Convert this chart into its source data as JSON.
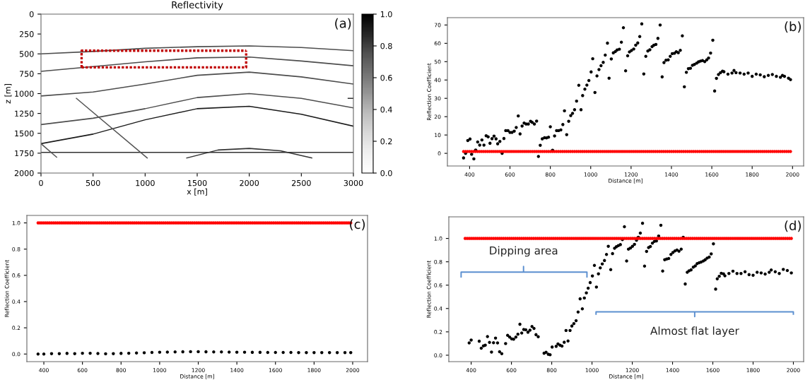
{
  "chart_data": [
    {
      "type": "line",
      "title": "Reflectivity",
      "xlabel": "x [m]",
      "ylabel": "z [m]",
      "xlim": [
        0,
        3000
      ],
      "ylim": [
        2000,
        0
      ],
      "xticks": [
        0,
        500,
        1000,
        1500,
        2000,
        2500,
        3000
      ],
      "yticks": [
        0,
        250,
        500,
        750,
        1000,
        1250,
        1500,
        1750,
        2000
      ],
      "clim": [
        0,
        1
      ],
      "cticks": [
        {
          "value": 0,
          "label": "0.0"
        },
        {
          "value": 0.2,
          "label": "0.2"
        },
        {
          "value": 0.4,
          "label": "0.4"
        },
        {
          "value": 0.6,
          "label": "0.6"
        },
        {
          "value": 0.8,
          "label": "0.8"
        },
        {
          "value": 1,
          "label": "1.0"
        }
      ],
      "annotations": [
        "(a)"
      ],
      "series": [
        {
          "color": "#4d4d4d",
          "x": [
            0,
            500,
            1000,
            1500,
            2000,
            2500,
            3000
          ],
          "values": [
            500,
            470,
            430,
            410,
            400,
            420,
            460
          ]
        },
        {
          "color": "#4d4d4d",
          "x": [
            0,
            500,
            1000,
            1500,
            2000,
            2500,
            3000
          ],
          "values": [
            720,
            660,
            600,
            550,
            540,
            590,
            650
          ]
        },
        {
          "color": "#4d4d4d",
          "x": [
            0,
            500,
            1000,
            1500,
            2000,
            2500,
            3000
          ],
          "values": [
            1030,
            980,
            880,
            770,
            730,
            790,
            880
          ]
        },
        {
          "color": "#4d4d4d",
          "x": [
            0,
            500,
            1000,
            1500,
            2000,
            2500,
            3000
          ],
          "values": [
            1390,
            1310,
            1190,
            1050,
            1000,
            1060,
            1180
          ]
        },
        {
          "color": "#1a1a1a",
          "x": [
            0,
            500,
            1000,
            1500,
            2000,
            2500,
            3000
          ],
          "values": [
            1630,
            1510,
            1330,
            1190,
            1160,
            1260,
            1410
          ]
        },
        {
          "color": "#333333",
          "x": [
            0,
            3000
          ],
          "values": [
            1740,
            1740
          ]
        },
        {
          "color": "#555555",
          "x": [
            0,
            150
          ],
          "values": [
            1630,
            1800
          ]
        },
        {
          "color": "#555555",
          "x": [
            340,
            1020
          ],
          "values": [
            1060,
            1810
          ]
        },
        {
          "color": "#333333",
          "x": [
            1400,
            1700,
            2000,
            2300,
            2600
          ],
          "values": [
            1810,
            1710,
            1690,
            1720,
            1810
          ]
        },
        {
          "color": "#333333",
          "x": [
            2950,
            3000
          ],
          "values": [
            1060,
            1060
          ]
        },
        {
          "color": "#c00000",
          "line_style": "dotted",
          "x": [
            390,
            390,
            1970
          ],
          "values": [
            670,
            460,
            460
          ]
        },
        {
          "color": "#c00000",
          "line_style": "dotted",
          "x": [
            390,
            1970,
            1970
          ],
          "values": [
            670,
            670,
            460
          ]
        }
      ]
    },
    {
      "type": "scatter",
      "xlabel": "Distance [m]",
      "ylabel": "Reflection Coefficient",
      "xlim": [
        290,
        2055
      ],
      "ylim": [
        -6.9,
        74
      ],
      "xticks": [
        400,
        600,
        800,
        1000,
        1200,
        1400,
        1600,
        1800,
        2000
      ],
      "yticks": [
        0,
        10,
        20,
        30,
        40,
        50,
        60,
        70
      ],
      "marker": "circle",
      "annotations": [
        "(b)"
      ],
      "series": [
        {
          "color": "#000000",
          "x": [
            370,
            380,
            391,
            402,
            410,
            421,
            430,
            440,
            450,
            461,
            471,
            482,
            492,
            501,
            511,
            521,
            531,
            539,
            550,
            561,
            570,
            579,
            590,
            600,
            610,
            621,
            631,
            641,
            650,
            660,
            670,
            680,
            691,
            702,
            710,
            721,
            732,
            741,
            750,
            760,
            771,
            781,
            791,
            800,
            811,
            821,
            831,
            841,
            852,
            862,
            870,
            881,
            891,
            901,
            910,
            920,
            930,
            941,
            952,
            960,
            971,
            981,
            991,
            1002,
            1010,
            1021,
            1031,
            1041,
            1051,
            1062,
            1072,
            1083,
            1091,
            1102,
            1112,
            1122,
            1131,
            1142,
            1152,
            1162,
            1173,
            1183,
            1192,
            1202,
            1213,
            1223,
            1233,
            1243,
            1253,
            1263,
            1273,
            1283,
            1293,
            1304,
            1313,
            1323,
            1333,
            1344,
            1354,
            1363,
            1373,
            1384,
            1394,
            1404,
            1415,
            1424,
            1434,
            1444,
            1454,
            1464,
            1474,
            1484,
            1494,
            1504,
            1514,
            1525,
            1534,
            1544,
            1554,
            1565,
            1575,
            1584,
            1594,
            1605,
            1614,
            1623,
            1633,
            1643,
            1653,
            1660,
            1680,
            1700,
            1710,
            1720,
            1740,
            1760,
            1780,
            1800,
            1820,
            1840,
            1860,
            1880,
            1900,
            1920,
            1940,
            1950,
            1960,
            1980,
            1990
          ],
          "values": [
            -2.5,
            0,
            7,
            7.8,
            -0.5,
            -3,
            1.8,
            6.2,
            4.5,
            7.3,
            4.5,
            9.6,
            9,
            5.5,
            8,
            9.4,
            7.9,
            5.2,
            6.5,
            0,
            8.1,
            12.4,
            12.4,
            11.4,
            11.4,
            12.1,
            14.1,
            20.4,
            10.6,
            14.9,
            16.5,
            16,
            16,
            17.5,
            16.9,
            16,
            17.6,
            -1.7,
            4.4,
            7.9,
            8.5,
            8.4,
            8.8,
            14.5,
            1.7,
            9.5,
            12.4,
            12.4,
            12.8,
            15.7,
            23.2,
            10.2,
            17.5,
            20.6,
            21.8,
            23.8,
            28.5,
            37.1,
            23.8,
            31.5,
            35,
            37.2,
            39.7,
            44.4,
            51.6,
            33.2,
            42.2,
            45.7,
            47.8,
            49.6,
            53.6,
            60.1,
            41,
            51.5,
            54.8,
            55.5,
            56.4,
            56.8,
            60.6,
            68.5,
            45,
            53.2,
            55.3,
            56.1,
            56.9,
            59,
            60.2,
            63.7,
            70.6,
            43.3,
            52.9,
            55.8,
            56.5,
            58.2,
            59,
            59.4,
            62.7,
            70,
            41.7,
            49.5,
            50.8,
            51,
            52.9,
            54.4,
            54.6,
            55.4,
            54.9,
            56.2,
            64.1,
            36.3,
            44.2,
            46.2,
            46.4,
            48,
            48.5,
            49.2,
            49.9,
            50.3,
            50.6,
            50,
            51,
            52,
            54.7,
            61.7,
            34,
            40.9,
            43,
            44,
            44.8,
            44.5,
            43.2,
            43.8,
            45.2,
            44,
            43.8,
            43.2,
            43.8,
            42,
            43.2,
            42.8,
            41.8,
            42.5,
            43,
            42,
            41.5,
            42.5,
            42,
            41,
            40.2
          ]
        },
        {
          "color": "#ff0000",
          "x": [
            370,
            380,
            390,
            400,
            410,
            420,
            430,
            440,
            450,
            460,
            470,
            480,
            490,
            500,
            510,
            520,
            530,
            540,
            550,
            560,
            570,
            580,
            590,
            600,
            610,
            620,
            630,
            640,
            650,
            660,
            670,
            680,
            690,
            700,
            710,
            720,
            730,
            740,
            750,
            760,
            770,
            780,
            790,
            800,
            810,
            820,
            830,
            840,
            850,
            860,
            870,
            880,
            890,
            900,
            910,
            920,
            930,
            940,
            950,
            960,
            970,
            980,
            990,
            1000,
            1010,
            1020,
            1030,
            1040,
            1050,
            1060,
            1070,
            1080,
            1090,
            1100,
            1110,
            1120,
            1130,
            1140,
            1150,
            1160,
            1170,
            1180,
            1190,
            1200,
            1210,
            1220,
            1230,
            1240,
            1250,
            1260,
            1270,
            1280,
            1290,
            1300,
            1310,
            1320,
            1330,
            1340,
            1350,
            1360,
            1370,
            1380,
            1390,
            1400,
            1410,
            1420,
            1430,
            1440,
            1450,
            1460,
            1470,
            1480,
            1490,
            1500,
            1510,
            1520,
            1530,
            1540,
            1550,
            1560,
            1570,
            1580,
            1590,
            1600,
            1610,
            1620,
            1630,
            1640,
            1650,
            1660,
            1670,
            1680,
            1690,
            1700,
            1710,
            1720,
            1730,
            1740,
            1750,
            1760,
            1770,
            1780,
            1790,
            1800,
            1810,
            1820,
            1830,
            1840,
            1850,
            1860,
            1870,
            1880,
            1890,
            1900,
            1910,
            1920,
            1930,
            1940,
            1950,
            1960,
            1970,
            1980,
            1990
          ],
          "values": [
            1,
            1,
            1,
            1,
            1,
            1,
            1,
            1,
            1,
            1,
            1,
            1,
            1,
            1,
            1,
            1,
            1,
            1,
            1,
            1,
            1,
            1,
            1,
            1,
            1,
            1,
            1,
            1,
            1,
            1,
            1,
            1,
            1,
            1,
            1,
            1,
            1,
            1,
            1,
            1,
            1,
            1,
            1,
            1,
            1,
            1,
            1,
            1,
            1,
            1,
            1,
            1,
            1,
            1,
            1,
            1,
            1,
            1,
            1,
            1,
            1,
            1,
            1,
            1,
            1,
            1,
            1,
            1,
            1,
            1,
            1,
            1,
            1,
            1,
            1,
            1,
            1,
            1,
            1,
            1,
            1,
            1,
            1,
            1,
            1,
            1,
            1,
            1,
            1,
            1,
            1,
            1,
            1,
            1,
            1,
            1,
            1,
            1,
            1,
            1,
            1,
            1,
            1,
            1,
            1,
            1,
            1,
            1,
            1,
            1,
            1,
            1,
            1,
            1,
            1,
            1,
            1,
            1,
            1,
            1,
            1,
            1,
            1,
            1,
            1,
            1,
            1,
            1,
            1,
            1,
            1,
            1,
            1,
            1,
            1,
            1,
            1,
            1,
            1,
            1,
            1,
            1,
            1,
            1,
            1,
            1,
            1,
            1,
            1,
            1,
            1,
            1,
            1,
            1,
            1,
            1,
            1,
            1,
            1,
            1,
            1,
            1,
            1
          ]
        }
      ]
    },
    {
      "type": "scatter",
      "xlabel": "Distance [m]",
      "ylabel": "Reflection Coefficient",
      "xlim": [
        312,
        2077
      ],
      "ylim": [
        -0.058,
        1.057
      ],
      "xticks": [
        400,
        600,
        800,
        1000,
        1200,
        1400,
        1600,
        1800,
        2000
      ],
      "yticks": [
        {
          "value": 0,
          "label": "0.0"
        },
        {
          "value": 0.2,
          "label": "0.2"
        },
        {
          "value": 0.4,
          "label": "0.4"
        },
        {
          "value": 0.6,
          "label": "0.6"
        },
        {
          "value": 0.8,
          "label": "0.8"
        },
        {
          "value": 1,
          "label": "1.0"
        }
      ],
      "marker": "circle",
      "annotations": [
        "(c)"
      ],
      "series": [
        {
          "color": "#000000",
          "x": [
            370,
            400,
            440,
            480,
            520,
            560,
            600,
            640,
            680,
            720,
            760,
            800,
            840,
            880,
            920,
            960,
            1000,
            1040,
            1080,
            1120,
            1160,
            1200,
            1240,
            1280,
            1320,
            1360,
            1400,
            1440,
            1480,
            1520,
            1560,
            1600,
            1640,
            1680,
            1720,
            1760,
            1800,
            1840,
            1880,
            1920,
            1960,
            1990
          ],
          "values": [
            0,
            0,
            0.003,
            0.003,
            0.005,
            0.003,
            0.006,
            0.006,
            0.004,
            0.002,
            0.003,
            0.005,
            0.006,
            0.008,
            0.01,
            0.012,
            0.014,
            0.015,
            0.016,
            0.017,
            0.018,
            0.018,
            0.017,
            0.016,
            0.016,
            0.015,
            0.014,
            0.014,
            0.013,
            0.013,
            0.012,
            0.012,
            0.012,
            0.012,
            0.011,
            0.011,
            0.011,
            0.011,
            0.011,
            0.011,
            0.011,
            0.011
          ]
        },
        {
          "color": "#ff0000",
          "x": [
            370,
            380,
            390,
            400,
            410,
            420,
            430,
            440,
            450,
            460,
            470,
            480,
            490,
            500,
            510,
            520,
            530,
            540,
            550,
            560,
            570,
            580,
            590,
            600,
            610,
            620,
            630,
            640,
            650,
            660,
            670,
            680,
            690,
            700,
            710,
            720,
            730,
            740,
            750,
            760,
            770,
            780,
            790,
            800,
            810,
            820,
            830,
            840,
            850,
            860,
            870,
            880,
            890,
            900,
            910,
            920,
            930,
            940,
            950,
            960,
            970,
            980,
            990,
            1000,
            1010,
            1020,
            1030,
            1040,
            1050,
            1060,
            1070,
            1080,
            1090,
            1100,
            1110,
            1120,
            1130,
            1140,
            1150,
            1160,
            1170,
            1180,
            1190,
            1200,
            1210,
            1220,
            1230,
            1240,
            1250,
            1260,
            1270,
            1280,
            1290,
            1300,
            1310,
            1320,
            1330,
            1340,
            1350,
            1360,
            1370,
            1380,
            1390,
            1400,
            1410,
            1420,
            1430,
            1440,
            1450,
            1460,
            1470,
            1480,
            1490,
            1500,
            1510,
            1520,
            1530,
            1540,
            1550,
            1560,
            1570,
            1580,
            1590,
            1600,
            1610,
            1620,
            1630,
            1640,
            1650,
            1660,
            1670,
            1680,
            1690,
            1700,
            1710,
            1720,
            1730,
            1740,
            1750,
            1760,
            1770,
            1780,
            1790,
            1800,
            1810,
            1820,
            1830,
            1840,
            1850,
            1860,
            1870,
            1880,
            1890,
            1900,
            1910,
            1920,
            1930,
            1940,
            1950,
            1960,
            1970,
            1980,
            1990
          ],
          "values": [
            1,
            1,
            1,
            1,
            1,
            1,
            1,
            1,
            1,
            1,
            1,
            1,
            1,
            1,
            1,
            1,
            1,
            1,
            1,
            1,
            1,
            1,
            1,
            1,
            1,
            1,
            1,
            1,
            1,
            1,
            1,
            1,
            1,
            1,
            1,
            1,
            1,
            1,
            1,
            1,
            1,
            1,
            1,
            1,
            1,
            1,
            1,
            1,
            1,
            1,
            1,
            1,
            1,
            1,
            1,
            1,
            1,
            1,
            1,
            1,
            1,
            1,
            1,
            1,
            1,
            1,
            1,
            1,
            1,
            1,
            1,
            1,
            1,
            1,
            1,
            1,
            1,
            1,
            1,
            1,
            1,
            1,
            1,
            1,
            1,
            1,
            1,
            1,
            1,
            1,
            1,
            1,
            1,
            1,
            1,
            1,
            1,
            1,
            1,
            1,
            1,
            1,
            1,
            1,
            1,
            1,
            1,
            1,
            1,
            1,
            1,
            1,
            1,
            1,
            1,
            1,
            1,
            1,
            1,
            1,
            1,
            1,
            1,
            1,
            1,
            1,
            1,
            1,
            1,
            1,
            1,
            1,
            1,
            1,
            1,
            1,
            1,
            1,
            1,
            1,
            1,
            1,
            1,
            1,
            1,
            1,
            1,
            1,
            1,
            1,
            1,
            1,
            1,
            1,
            1,
            1,
            1,
            1,
            1,
            1,
            1,
            1,
            1
          ]
        }
      ]
    },
    {
      "type": "scatter",
      "xlabel": "Distance [m]",
      "ylabel": "Reflection Coefficient",
      "xlim": [
        289,
        2051
      ],
      "ylim": [
        -0.055,
        1.185
      ],
      "xticks": [
        400,
        600,
        800,
        1000,
        1200,
        1400,
        1600,
        1800,
        2000
      ],
      "yticks": [
        {
          "value": 0,
          "label": "0.0"
        },
        {
          "value": 0.2,
          "label": "0.2"
        },
        {
          "value": 0.4,
          "label": "0.4"
        },
        {
          "value": 0.6,
          "label": "0.6"
        },
        {
          "value": 0.8,
          "label": "0.8"
        },
        {
          "value": 1,
          "label": "1.0"
        }
      ],
      "marker": "circle",
      "annotations": [
        "(d)",
        {
          "text": "Dipping area",
          "x": 660,
          "y": 0.76
        },
        {
          "text": "Almost flat layer",
          "x": 1510,
          "y": 0.33
        }
      ],
      "series": [
        {
          "color": "#000000",
          "x": [
            390,
            400,
            440,
            450,
            461,
            470,
            481,
            491,
            501,
            511,
            521,
            531,
            541,
            552,
            571,
            581,
            591,
            601,
            611,
            622,
            632,
            642,
            651,
            661,
            671,
            682,
            692,
            702,
            712,
            722,
            733,
            762,
            772,
            783,
            792,
            802,
            822,
            831,
            841,
            851,
            862,
            871,
            881,
            891,
            900,
            910,
            921,
            931,
            941,
            952,
            962,
            972,
            981,
            991,
            1002,
            1012,
            1022,
            1032,
            1041,
            1051,
            1062,
            1072,
            1081,
            1093,
            1102,
            1112,
            1121,
            1131,
            1141,
            1151,
            1161,
            1172,
            1181,
            1191,
            1201,
            1211,
            1221,
            1230,
            1240,
            1251,
            1261,
            1271,
            1281,
            1290,
            1300,
            1310,
            1320,
            1331,
            1342,
            1351,
            1361,
            1371,
            1381,
            1392,
            1402,
            1412,
            1422,
            1432,
            1443,
            1453,
            1463,
            1473,
            1482,
            1492,
            1503,
            1513,
            1522,
            1532,
            1542,
            1553,
            1562,
            1572,
            1582,
            1592,
            1603,
            1614,
            1622,
            1632,
            1642,
            1653,
            1660,
            1680,
            1700,
            1720,
            1740,
            1760,
            1780,
            1800,
            1820,
            1840,
            1860,
            1880,
            1890,
            1910,
            1930,
            1950,
            1970,
            1990
          ],
          "values": [
            0.105,
            0.13,
            0.12,
            0.06,
            0.08,
            0.086,
            0.16,
            0.11,
            0.027,
            0.107,
            0.147,
            0.105,
            0.03,
            0.013,
            0.1,
            0.17,
            0.155,
            0.14,
            0.137,
            0.155,
            0.18,
            0.265,
            0.19,
            0.22,
            0.218,
            0.197,
            0.214,
            0.246,
            0.229,
            0.176,
            0.158,
            0.017,
            0.025,
            0.008,
            0.004,
            0.07,
            0.076,
            0.097,
            0.086,
            0.078,
            0.111,
            0.212,
            0.122,
            0.212,
            0.25,
            0.271,
            0.296,
            0.37,
            0.483,
            0.397,
            0.49,
            0.534,
            0.574,
            0.622,
            0.679,
            0.769,
            0.584,
            0.697,
            0.748,
            0.782,
            0.811,
            0.863,
            0.933,
            0.733,
            0.87,
            0.916,
            0.929,
            0.939,
            0.947,
            0.99,
            1.1,
            0.807,
            0.908,
            0.918,
            0.933,
            0.95,
            0.985,
            1.01,
            1.046,
            1.13,
            0.763,
            0.889,
            0.922,
            0.931,
            0.96,
            0.975,
            0.979,
            1.021,
            1.113,
            0.721,
            0.818,
            0.824,
            0.828,
            0.863,
            0.88,
            0.893,
            0.901,
            0.891,
            0.908,
            1.01,
            0.61,
            0.71,
            0.723,
            0.731,
            0.754,
            0.765,
            0.784,
            0.792,
            0.798,
            0.807,
            0.817,
            0.832,
            0.84,
            0.868,
            0.954,
            0.566,
            0.654,
            0.676,
            0.702,
            0.697,
            0.68,
            0.7,
            0.72,
            0.7,
            0.7,
            0.715,
            0.69,
            0.685,
            0.71,
            0.705,
            0.695,
            0.71,
            0.73,
            0.715,
            0.7,
            0.735,
            0.725,
            0.705
          ]
        },
        {
          "color": "#ff0000",
          "x": [
            370,
            380,
            390,
            400,
            410,
            420,
            430,
            440,
            450,
            460,
            470,
            480,
            490,
            500,
            510,
            520,
            530,
            540,
            550,
            560,
            570,
            580,
            590,
            600,
            610,
            620,
            630,
            640,
            650,
            660,
            670,
            680,
            690,
            700,
            710,
            720,
            730,
            740,
            750,
            760,
            770,
            780,
            790,
            800,
            810,
            820,
            830,
            840,
            850,
            860,
            870,
            880,
            890,
            900,
            910,
            920,
            930,
            940,
            950,
            960,
            970,
            980,
            990,
            1000,
            1010,
            1020,
            1030,
            1040,
            1050,
            1060,
            1070,
            1080,
            1090,
            1100,
            1110,
            1120,
            1130,
            1140,
            1150,
            1160,
            1170,
            1180,
            1190,
            1200,
            1210,
            1220,
            1230,
            1240,
            1250,
            1260,
            1270,
            1280,
            1290,
            1300,
            1310,
            1320,
            1330,
            1340,
            1350,
            1360,
            1370,
            1380,
            1390,
            1400,
            1410,
            1420,
            1430,
            1440,
            1450,
            1460,
            1470,
            1480,
            1490,
            1500,
            1510,
            1520,
            1530,
            1540,
            1550,
            1560,
            1570,
            1580,
            1590,
            1600,
            1610,
            1620,
            1630,
            1640,
            1650,
            1660,
            1670,
            1680,
            1690,
            1700,
            1710,
            1720,
            1730,
            1740,
            1750,
            1760,
            1770,
            1780,
            1790,
            1800,
            1810,
            1820,
            1830,
            1840,
            1850,
            1860,
            1870,
            1880,
            1890,
            1900,
            1910,
            1920,
            1930,
            1940,
            1950,
            1960,
            1970,
            1980,
            1990
          ],
          "values": [
            1,
            1,
            1,
            1,
            1,
            1,
            1,
            1,
            1,
            1,
            1,
            1,
            1,
            1,
            1,
            1,
            1,
            1,
            1,
            1,
            1,
            1,
            1,
            1,
            1,
            1,
            1,
            1,
            1,
            1,
            1,
            1,
            1,
            1,
            1,
            1,
            1,
            1,
            1,
            1,
            1,
            1,
            1,
            1,
            1,
            1,
            1,
            1,
            1,
            1,
            1,
            1,
            1,
            1,
            1,
            1,
            1,
            1,
            1,
            1,
            1,
            1,
            1,
            1,
            1,
            1,
            1,
            1,
            1,
            1,
            1,
            1,
            1,
            1,
            1,
            1,
            1,
            1,
            1,
            1,
            1,
            1,
            1,
            1,
            1,
            1,
            1,
            1,
            1,
            1,
            1,
            1,
            1,
            1,
            1,
            1,
            1,
            1,
            1,
            1,
            1,
            1,
            1,
            1,
            1,
            1,
            1,
            1,
            1,
            1,
            1,
            1,
            1,
            1,
            1,
            1,
            1,
            1,
            1,
            1,
            1,
            1,
            1,
            1,
            1,
            1,
            1,
            1,
            1,
            1,
            1,
            1,
            1,
            1,
            1,
            1,
            1,
            1,
            1,
            1,
            1,
            1,
            1,
            1,
            1,
            1,
            1,
            1,
            1,
            1,
            1,
            1,
            1,
            1,
            1,
            1,
            1,
            1,
            1,
            1,
            1,
            1,
            1
          ]
        },
        {
          "type": "line",
          "marker": "none",
          "color": "#5b8fd0",
          "x": [
            350,
            350,
            660,
            660,
            660,
            975,
            975
          ],
          "values": [
            0.67,
            0.712,
            0.712,
            0.76,
            0.712,
            0.712,
            0.67
          ]
        },
        {
          "type": "line",
          "marker": "none",
          "color": "#5b8fd0",
          "x": [
            1020,
            1020,
            1510,
            1510,
            1510,
            2000,
            2000
          ],
          "values": [
            0.352,
            0.372,
            0.372,
            0.33,
            0.372,
            0.372,
            0.352
          ]
        }
      ]
    }
  ]
}
